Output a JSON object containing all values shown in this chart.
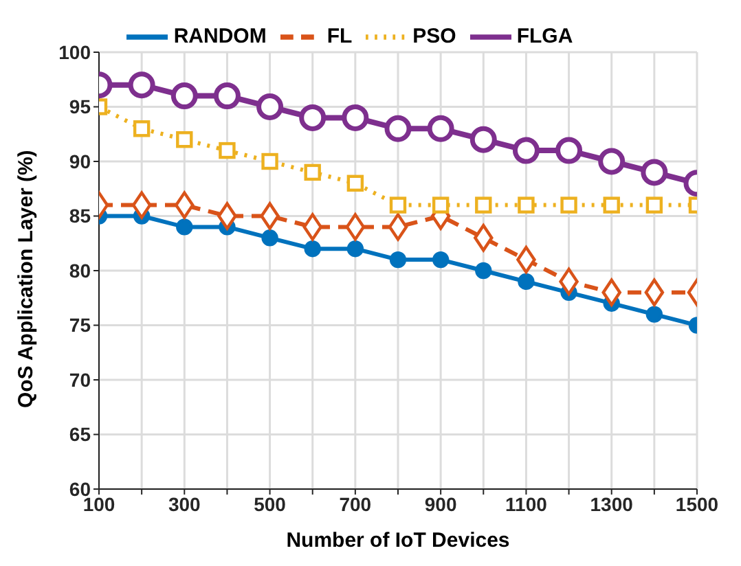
{
  "chart_data": {
    "type": "line",
    "xlabel": "Number of IoT Devices",
    "ylabel": "QoS Application Layer (%)",
    "x": [
      100,
      200,
      300,
      400,
      500,
      600,
      700,
      800,
      900,
      1000,
      1100,
      1200,
      1300,
      1400,
      1500
    ],
    "xlim": [
      100,
      1500
    ],
    "xticks": [
      100,
      {
        "value": 200,
        "label": null
      },
      300,
      {
        "value": 400,
        "label": null
      },
      500,
      {
        "value": 600,
        "label": null
      },
      700,
      {
        "value": 800,
        "label": null
      },
      900,
      {
        "value": 1000,
        "label": null
      },
      1100,
      {
        "value": 1200,
        "label": null
      },
      1300,
      {
        "value": 1400,
        "label": null
      },
      1500
    ],
    "ylim": [
      60,
      100
    ],
    "yticks": [
      60,
      65,
      70,
      75,
      80,
      85,
      90,
      95,
      100
    ],
    "grid": true,
    "legend": "top",
    "series": [
      {
        "name": "RANDOM",
        "color": "#0072bd",
        "marker": "circle",
        "line_style": "solid",
        "values": [
          85,
          85,
          84,
          84,
          83,
          82,
          82,
          81,
          81,
          80,
          79,
          78,
          77,
          76,
          75
        ]
      },
      {
        "name": "FL",
        "color": "#d95319",
        "marker": "diamond",
        "line_style": "dashed",
        "values": [
          86,
          86,
          86,
          85,
          85,
          84,
          84,
          84,
          85,
          83,
          81,
          79,
          78,
          78,
          78
        ]
      },
      {
        "name": "PSO",
        "color": "#edb120",
        "marker": "square",
        "line_style": "dotted",
        "values": [
          95,
          93,
          92,
          91,
          90,
          89,
          88,
          86,
          86,
          86,
          86,
          86,
          86,
          86,
          86
        ]
      },
      {
        "name": "FLGA",
        "color": "#7e2f8e",
        "marker": "circle",
        "line_style": "solid",
        "values": [
          97,
          97,
          96,
          96,
          95,
          94,
          94,
          93,
          93,
          92,
          91,
          91,
          90,
          89,
          88
        ]
      }
    ]
  }
}
